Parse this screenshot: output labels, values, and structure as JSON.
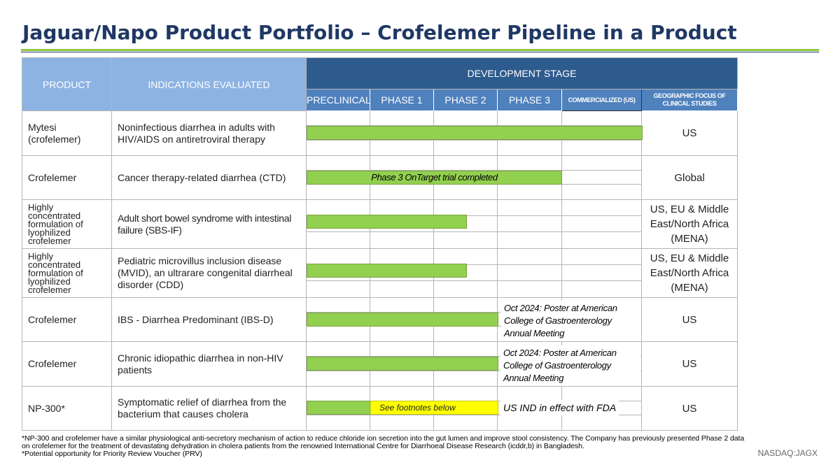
{
  "title": "Jaguar/Napo Product Portfolio – Crofelemer Pipeline in a Product",
  "header": {
    "product": "PRODUCT",
    "indications": "INDICATIONS EVALUATED",
    "development_stage": "DEVELOPMENT STAGE",
    "stages": [
      "PRECLINICAL",
      "PHASE 1",
      "PHASE 2",
      "PHASE 3",
      "COMMERCIALIZED (US)"
    ],
    "geo": "GEOGRAPHIC FOCUS OF CLINICAL STUDIES"
  },
  "rows": [
    {
      "product": "Mytesi (crofelemer)",
      "indication": "Noninfectious diarrhea in adults with HIV/AIDS on antiretroviral therapy",
      "geo": "US",
      "progress_stage": "Commercialized (US)"
    },
    {
      "product": "Crofelemer",
      "indication": "Cancer therapy-related diarrhea (CTD)",
      "geo": "Global",
      "progress_stage": "Phase 3",
      "bar_label": "Phase 3 OnTarget trial completed"
    },
    {
      "product": "Highly concentrated formulation of lyophilized crofelemer",
      "indication": "Adult short bowel syndrome with intestinal failure (SBS-IF)",
      "geo": "US, EU & Middle East/North Africa (MENA)",
      "progress_stage": "Phase 2"
    },
    {
      "product": "Highly concentrated formulation of lyophilized crofelemer",
      "indication": "Pediatric microvillus inclusion disease (MVID), an ultrarare congenital diarrheal disorder (CDD)",
      "geo": "US, EU & Middle East/North Africa (MENA)",
      "progress_stage": "Phase 2"
    },
    {
      "product": "Crofelemer",
      "indication": "IBS - Diarrhea Predominant (IBS-D)",
      "geo": "US",
      "progress_stage": "Phase 2",
      "note": "Oct 2024: Poster at American College of Gastroenterology Annual Meeting"
    },
    {
      "product": "Crofelemer",
      "indication": "Chronic idiopathic diarrhea in non-HIV patients",
      "geo": "US",
      "progress_stage": "Phase 2",
      "note": "Oct 2024: Poster at American College of Gastroenterology Annual Meeting"
    },
    {
      "product": "NP-300*",
      "indication": "Symptomatic relief of diarrhea from the bacterium that causes cholera",
      "geo": "US",
      "progress_stage": "Phase 1",
      "highlight_label": "See footnotes below",
      "note": "US IND in effect with FDA"
    }
  ],
  "footnotes": [
    "*NP-300 and crofelemer have a similar physiological anti-secretory mechanism of action to reduce chloride ion secretion into the gut lumen and improve stool consistency. The Company has previously presented Phase 2 data on crofelemer for the treatment of devastating dehydration in cholera patients from the renowned International Centre for Diarrhoeal Disease Research (icddr,b) in Bangladesh.",
    "*Potential opportunity for Priority Review Voucher (PRV)"
  ],
  "ticker": "NASDAQ:JAGX",
  "colors": {
    "title": "#1f3864",
    "header_dark": "#2e5b8e",
    "header_light": "#8db3e2",
    "header_mid": "#4f81bd",
    "bar_green": "#92d050",
    "highlight_yellow": "#ffff00",
    "rule_green": "#8dc63f"
  }
}
